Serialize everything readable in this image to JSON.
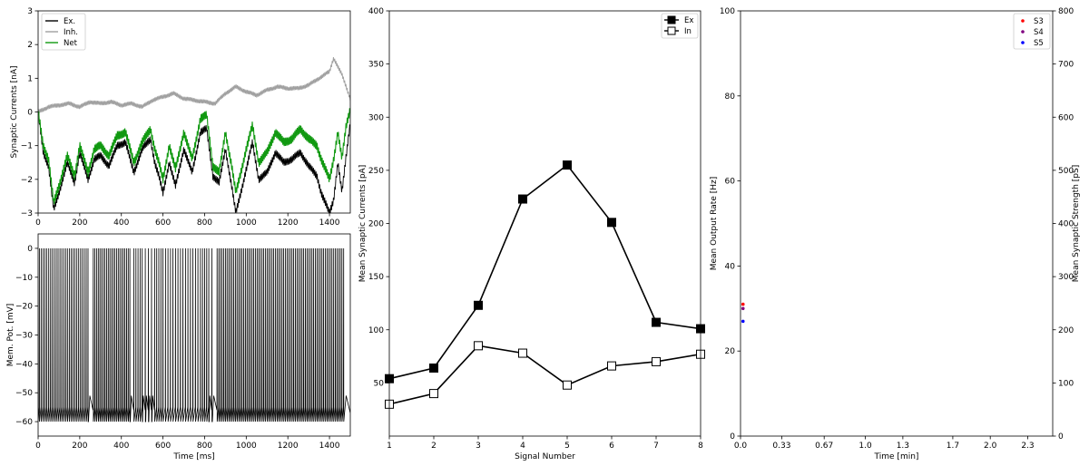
{
  "chart_data": [
    {
      "id": "currents",
      "type": "line",
      "xlabel": "",
      "ylabel": "Synaptic Currents [nA]",
      "xlim": [
        0,
        1500
      ],
      "ylim": [
        -3,
        3
      ],
      "xticks": [
        0,
        200,
        400,
        600,
        800,
        1000,
        1200,
        1400
      ],
      "yticks": [
        -3,
        -2,
        -1,
        0,
        1,
        2,
        3
      ],
      "legend_position": "top-left",
      "colors": {
        "ex": "#000000",
        "inh": "#a0a0a0",
        "net": "#119911"
      },
      "series": [
        {
          "key": "ex",
          "name": "Ex.",
          "x": [
            0,
            25,
            50,
            75,
            100,
            140,
            175,
            200,
            240,
            270,
            300,
            340,
            380,
            420,
            460,
            500,
            540,
            560,
            580,
            600,
            630,
            660,
            700,
            740,
            780,
            810,
            840,
            870,
            900,
            930,
            950,
            970,
            1000,
            1030,
            1060,
            1100,
            1140,
            1180,
            1220,
            1260,
            1300,
            1340,
            1360,
            1380,
            1400,
            1420,
            1440,
            1460,
            1480,
            1500
          ],
          "y": [
            0.0,
            -1.2,
            -1.6,
            -2.9,
            -2.4,
            -1.5,
            -2.1,
            -1.2,
            -2.0,
            -1.4,
            -1.3,
            -1.6,
            -1.0,
            -0.9,
            -1.8,
            -1.1,
            -0.8,
            -1.5,
            -1.9,
            -2.4,
            -1.5,
            -2.2,
            -1.1,
            -1.8,
            -0.6,
            -0.5,
            -1.9,
            -2.1,
            -1.1,
            -2.2,
            -3.0,
            -2.5,
            -1.7,
            -0.9,
            -2.0,
            -1.8,
            -1.2,
            -1.5,
            -1.4,
            -1.2,
            -1.6,
            -1.9,
            -2.4,
            -2.7,
            -3.0,
            -2.6,
            -1.5,
            -2.4,
            -1.3,
            -0.3
          ]
        },
        {
          "key": "inh",
          "name": "Inh.",
          "x": [
            0,
            50,
            100,
            150,
            200,
            250,
            300,
            350,
            400,
            450,
            500,
            550,
            600,
            650,
            700,
            750,
            800,
            850,
            900,
            950,
            1000,
            1050,
            1100,
            1150,
            1200,
            1250,
            1300,
            1350,
            1400,
            1420,
            1440,
            1460,
            1480,
            1500
          ],
          "y": [
            0.0,
            0.15,
            0.2,
            0.25,
            0.15,
            0.3,
            0.25,
            0.3,
            0.2,
            0.25,
            0.15,
            0.35,
            0.45,
            0.55,
            0.4,
            0.35,
            0.3,
            0.25,
            0.55,
            0.75,
            0.6,
            0.5,
            0.65,
            0.75,
            0.7,
            0.7,
            0.8,
            1.0,
            1.2,
            1.6,
            1.35,
            1.1,
            0.75,
            0.4
          ]
        },
        {
          "key": "net",
          "name": "Net",
          "x": [
            0,
            25,
            50,
            75,
            100,
            140,
            175,
            200,
            240,
            270,
            300,
            340,
            380,
            420,
            460,
            500,
            540,
            560,
            580,
            600,
            630,
            660,
            700,
            740,
            780,
            810,
            840,
            870,
            900,
            930,
            950,
            970,
            1000,
            1030,
            1060,
            1100,
            1140,
            1180,
            1220,
            1260,
            1300,
            1340,
            1360,
            1380,
            1400,
            1420,
            1440,
            1460,
            1480,
            1500
          ],
          "y": [
            0.0,
            -1.0,
            -1.4,
            -2.7,
            -2.2,
            -1.3,
            -1.9,
            -1.0,
            -1.8,
            -1.1,
            -1.0,
            -1.3,
            -0.7,
            -0.6,
            -1.5,
            -0.9,
            -0.5,
            -1.1,
            -1.5,
            -2.0,
            -1.0,
            -1.7,
            -0.6,
            -1.4,
            -0.2,
            -0.1,
            -1.6,
            -1.8,
            -0.6,
            -1.6,
            -2.4,
            -1.9,
            -1.1,
            -0.4,
            -1.5,
            -1.2,
            -0.6,
            -0.9,
            -0.8,
            -0.5,
            -0.8,
            -1.0,
            -1.4,
            -1.7,
            -2.0,
            -1.4,
            -0.6,
            -1.4,
            -0.4,
            0.1
          ]
        }
      ]
    },
    {
      "id": "membrane",
      "type": "line",
      "xlabel": "Time [ms]",
      "ylabel": "Mem. Pot. [mV]",
      "xlim": [
        0,
        1500
      ],
      "ylim": [
        -65,
        5
      ],
      "xticks": [
        0,
        200,
        400,
        600,
        800,
        1000,
        1200,
        1400
      ],
      "yticks": [
        0,
        -10,
        -20,
        -30,
        -40,
        -50,
        -60
      ],
      "color": "#000000",
      "spike_peak": 0,
      "reset": -60,
      "series": [
        {
          "name": "",
          "spike_times": [
            6,
            15,
            24,
            33,
            42,
            51,
            60,
            69,
            78,
            87,
            96,
            105,
            114,
            123,
            132,
            141,
            150,
            159,
            168,
            177,
            186,
            195,
            204,
            213,
            222,
            231,
            240,
            265,
            273,
            281,
            289,
            297,
            305,
            313,
            321,
            329,
            337,
            345,
            353,
            361,
            369,
            377,
            385,
            393,
            401,
            409,
            417,
            425,
            433,
            441,
            460,
            470,
            480,
            490,
            500,
            515,
            530,
            545,
            560,
            570,
            580,
            590,
            600,
            612,
            624,
            636,
            648,
            660,
            672,
            684,
            696,
            708,
            720,
            732,
            744,
            756,
            768,
            780,
            790,
            800,
            810,
            820,
            835,
            860,
            868,
            876,
            884,
            892,
            900,
            908,
            916,
            924,
            932,
            940,
            948,
            956,
            964,
            972,
            980,
            988,
            996,
            1004,
            1012,
            1020,
            1028,
            1036,
            1044,
            1052,
            1060,
            1068,
            1076,
            1084,
            1092,
            1100,
            1108,
            1116,
            1124,
            1132,
            1140,
            1148,
            1156,
            1164,
            1172,
            1180,
            1188,
            1196,
            1204,
            1212,
            1220,
            1228,
            1236,
            1244,
            1252,
            1260,
            1268,
            1276,
            1284,
            1292,
            1300,
            1308,
            1316,
            1324,
            1332,
            1340,
            1348,
            1356,
            1364,
            1372,
            1380,
            1388,
            1396,
            1404,
            1412,
            1420,
            1428,
            1436,
            1444,
            1452,
            1460,
            1468
          ]
        }
      ]
    },
    {
      "id": "mean-currents",
      "type": "line",
      "xlabel": "Signal Number",
      "ylabel": "Mean Synaptic Currents [pA]",
      "xlim": [
        1,
        8
      ],
      "ylim": [
        0,
        400
      ],
      "xticks": [
        1,
        2,
        3,
        4,
        5,
        6,
        7,
        8
      ],
      "yticks": [
        50,
        100,
        150,
        200,
        250,
        300,
        350,
        400
      ],
      "legend_position": "top-right",
      "series": [
        {
          "key": "ex",
          "name": "Ex",
          "marker": "filled-square",
          "x": [
            1,
            2,
            3,
            4,
            5,
            6,
            7,
            8
          ],
          "y": [
            54,
            64,
            123,
            223,
            255,
            201,
            107,
            101
          ]
        },
        {
          "key": "in",
          "name": "In",
          "marker": "open-square",
          "x": [
            1,
            2,
            3,
            4,
            5,
            6,
            7,
            8
          ],
          "y": [
            30,
            40,
            85,
            78,
            48,
            66,
            70,
            77
          ]
        }
      ]
    },
    {
      "id": "output-rate",
      "type": "scatter",
      "xlabel": "Time [min]",
      "ylabel": "Mean Output Rate [Hz]",
      "y2label": "Mean Synaptic Strength [pS]",
      "xlim": [
        0,
        2.5
      ],
      "ylim": [
        0,
        100
      ],
      "y2lim": [
        0,
        800
      ],
      "xticks": [
        0.0,
        0.33,
        0.67,
        1.0,
        1.3,
        1.7,
        2.0,
        2.3
      ],
      "xticklabels": [
        "0.0",
        "0.33",
        "0.67",
        "1.0",
        "1.3",
        "1.7",
        "2.0",
        "2.3"
      ],
      "yticks": [
        0,
        20,
        40,
        60,
        80,
        100
      ],
      "y2ticks": [
        0,
        100,
        200,
        300,
        400,
        500,
        600,
        700,
        800
      ],
      "legend_position": "top-right",
      "series": [
        {
          "name": "S3",
          "color": "#ff0000",
          "x": [
            0.02
          ],
          "y": [
            31
          ]
        },
        {
          "name": "S4",
          "color": "#800080",
          "x": [
            0.02
          ],
          "y": [
            30
          ]
        },
        {
          "name": "S5",
          "color": "#0000ff",
          "x": [
            0.02
          ],
          "y": [
            27
          ]
        }
      ]
    }
  ]
}
